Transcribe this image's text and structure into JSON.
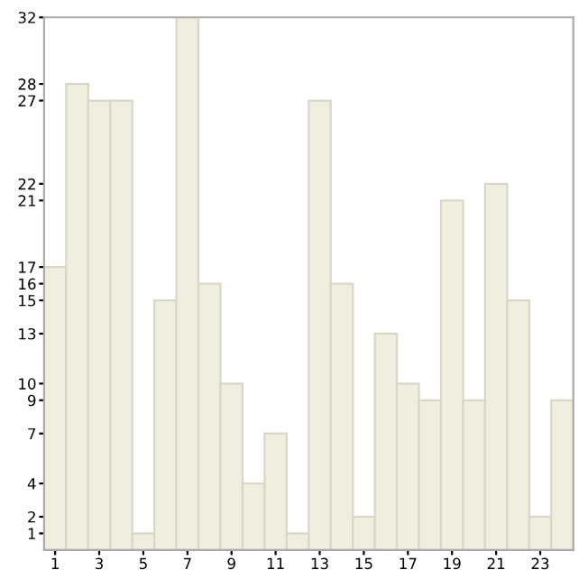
{
  "chart_data": {
    "type": "bar",
    "categories": [
      "1",
      null,
      "3",
      null,
      "5",
      null,
      "7",
      null,
      "9",
      null,
      "11",
      null,
      "13",
      null,
      "15",
      null,
      "17",
      null,
      "19",
      null,
      "21",
      null,
      "23",
      null
    ],
    "values": [
      17,
      28,
      27,
      27,
      1,
      15,
      32,
      16,
      10,
      4,
      7,
      1,
      27,
      16,
      2,
      13,
      10,
      9,
      21,
      9,
      22,
      15,
      2,
      9
    ],
    "color": "#efefdf",
    "ylim": [
      0,
      32
    ],
    "yticks": [
      1,
      2,
      4,
      7,
      9,
      10,
      13,
      15,
      16,
      17,
      21,
      22,
      27,
      28,
      32
    ],
    "grid": false
  }
}
